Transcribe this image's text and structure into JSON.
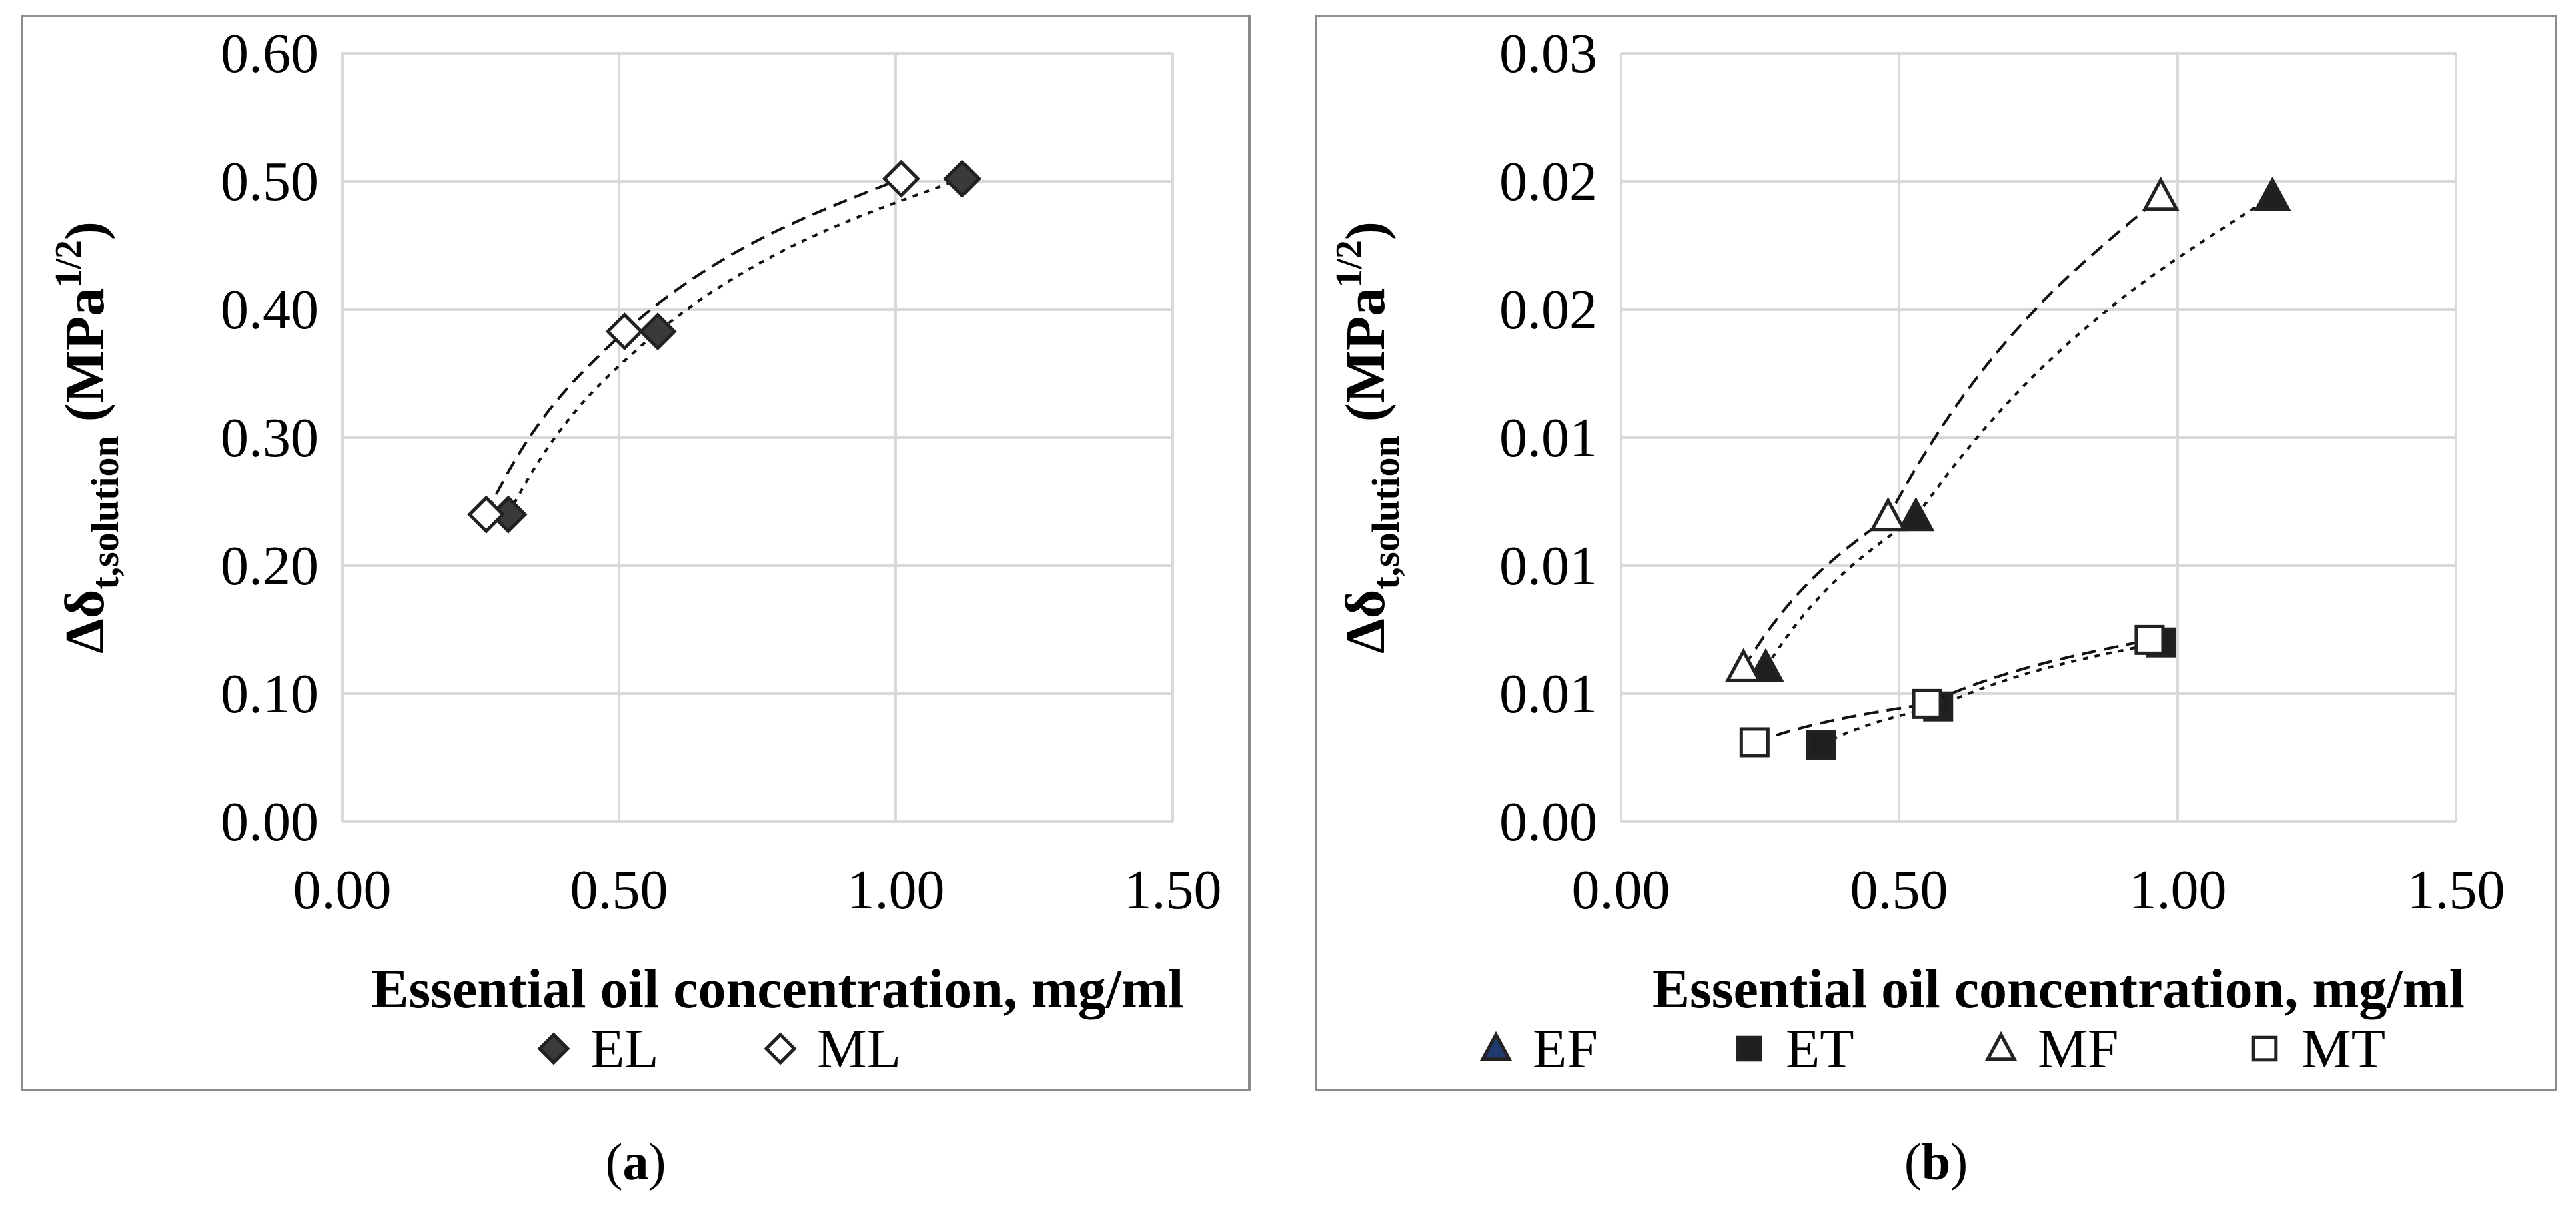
{
  "chart_data": [
    {
      "type": "scatter",
      "panel_label": "(a)",
      "panel_letter": "a",
      "xlabel": "Essential oil concentration, mg/ml",
      "ylabel_main": "Δδ",
      "ylabel_sub": "t,solution",
      "ylabel_unit_base": "(MPa",
      "ylabel_unit_exp": "1/2",
      "ylabel_unit_close": ")",
      "xlim": [
        0,
        1.5
      ],
      "ylim": [
        0,
        0.6
      ],
      "xticks": [
        "0.00",
        "0.50",
        "1.00",
        "1.50"
      ],
      "yticks": [
        "0.00",
        "0.10",
        "0.20",
        "0.30",
        "0.40",
        "0.50",
        "0.60"
      ],
      "grid": true,
      "legend_position": "bottom",
      "series": [
        {
          "name": "EL",
          "marker": "diamond",
          "fill": "#3a3a3a",
          "line": "dotted",
          "x": [
            0.3,
            0.57,
            1.12
          ],
          "y": [
            0.24,
            0.383,
            0.502
          ]
        },
        {
          "name": "ML",
          "marker": "diamond",
          "fill": "#ffffff",
          "line": "dashed",
          "x": [
            0.26,
            0.51,
            1.01
          ],
          "y": [
            0.24,
            0.383,
            0.502
          ]
        }
      ]
    },
    {
      "type": "scatter",
      "panel_label": "(b)",
      "panel_letter": "b",
      "xlabel": "Essential oil concentration, mg/ml",
      "ylabel_main": "Δδ",
      "ylabel_sub": "t,solution",
      "ylabel_unit_base": "(MPa",
      "ylabel_unit_exp": "1/2",
      "ylabel_unit_close": ")",
      "xlim": [
        0,
        1.5
      ],
      "ylim": [
        0,
        0.03
      ],
      "xticks": [
        "0.00",
        "0.50",
        "1.00",
        "1.50"
      ],
      "yticks": [
        "0.00",
        "0.01",
        "0.01",
        "0.01",
        "0.02",
        "0.02",
        "0.03"
      ],
      "grid": true,
      "legend_position": "bottom",
      "series": [
        {
          "name": "EF",
          "marker": "triangle",
          "fill": "#1f1f1f",
          "line": "dotted",
          "legend_color": "#1f3a6e",
          "x": [
            0.26,
            0.53,
            1.17
          ],
          "y": [
            0.006,
            0.0119,
            0.0244
          ]
        },
        {
          "name": "ET",
          "marker": "square",
          "fill": "#1f1f1f",
          "line": "dotted",
          "x": [
            0.36,
            0.57,
            0.97
          ],
          "y": [
            0.003,
            0.0045,
            0.007
          ]
        },
        {
          "name": "MF",
          "marker": "triangle",
          "fill": "#ffffff",
          "line": "dashed",
          "x": [
            0.22,
            0.48,
            0.97
          ],
          "y": [
            0.006,
            0.0119,
            0.0244
          ]
        },
        {
          "name": "MT",
          "marker": "square",
          "fill": "#ffffff",
          "line": "dashed",
          "x": [
            0.24,
            0.55,
            0.95
          ],
          "y": [
            0.0031,
            0.0046,
            0.0071
          ]
        }
      ]
    }
  ]
}
